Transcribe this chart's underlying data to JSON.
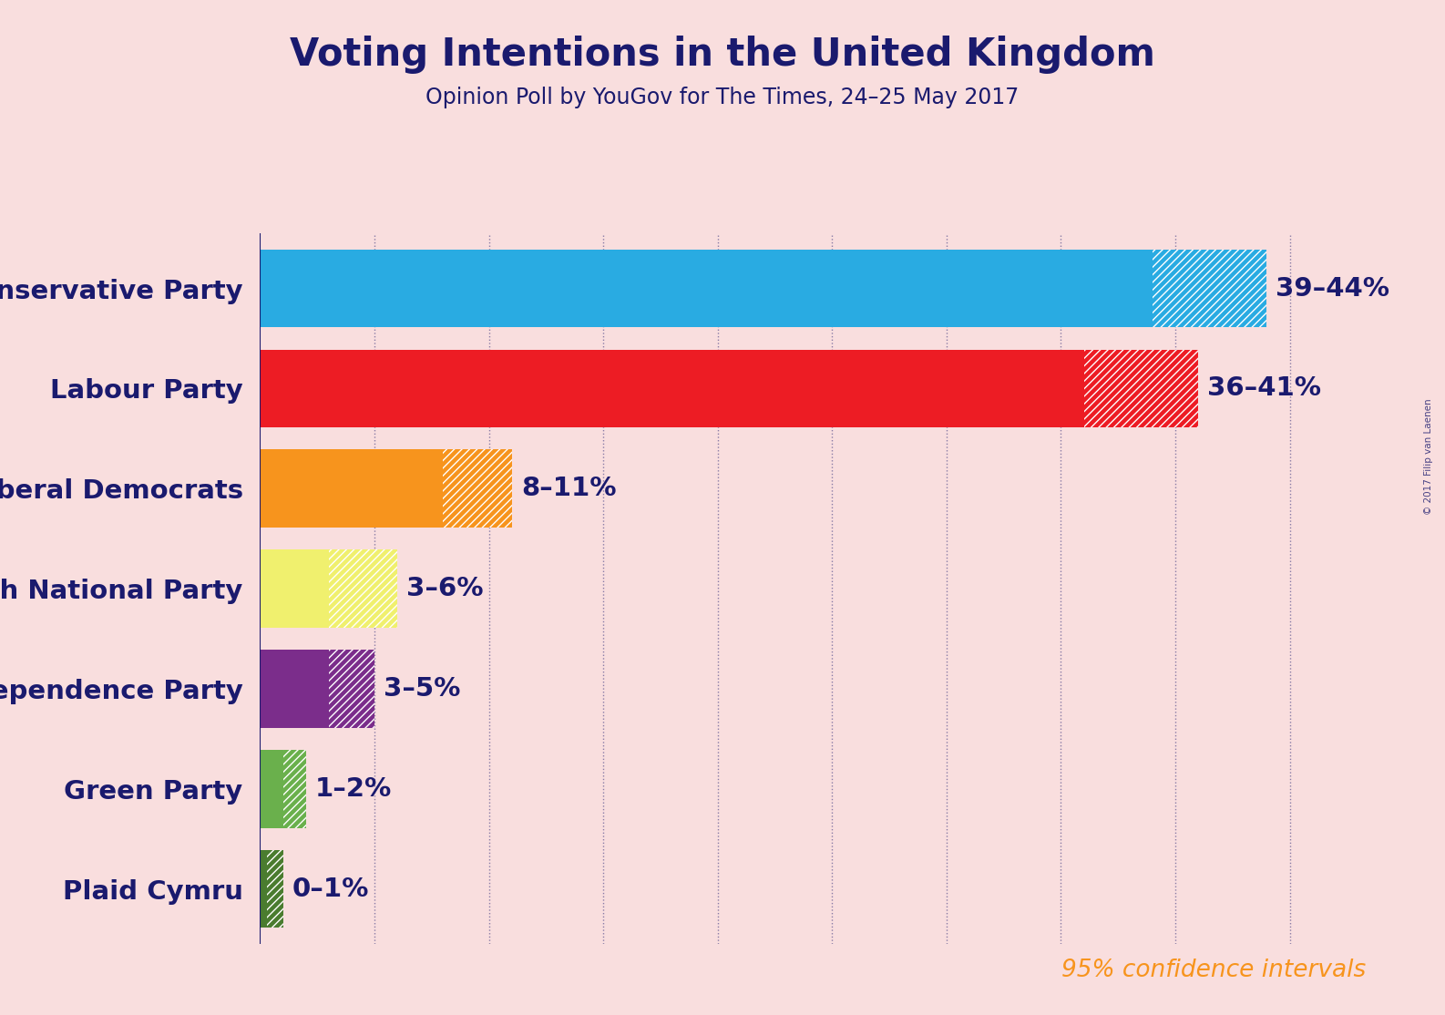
{
  "title": "Voting Intentions in the United Kingdom",
  "subtitle": "Opinion Poll by YouGov for The Times, 24–25 May 2017",
  "background_color": "#f9dede",
  "parties": [
    "Conservative Party",
    "Labour Party",
    "Liberal Democrats",
    "Scottish National Party",
    "UK Independence Party",
    "Green Party",
    "Plaid Cymru"
  ],
  "low": [
    39,
    36,
    8,
    3,
    3,
    1,
    0.3
  ],
  "high": [
    44,
    41,
    11,
    6,
    5,
    2,
    1
  ],
  "labels": [
    "39–44%",
    "36–41%",
    "8–11%",
    "3–6%",
    "3–5%",
    "1–2%",
    "0–1%"
  ],
  "solid_colors": [
    "#29abe2",
    "#ed1c24",
    "#f7941d",
    "#f0f06e",
    "#7b2d8b",
    "#6ab04c",
    "#4a7c2f"
  ],
  "title_color": "#1a1a6e",
  "subtitle_color": "#1a1a6e",
  "label_color": "#1a1a6e",
  "party_label_color": "#1a1a6e",
  "xlim": [
    0,
    48
  ],
  "gridline_positions": [
    5,
    10,
    15,
    20,
    25,
    30,
    35,
    40,
    45
  ],
  "note": "95% confidence intervals",
  "note_color": "#f7941d",
  "watermark": "© 2017 Filip van Laenen",
  "title_fontsize": 30,
  "subtitle_fontsize": 17,
  "party_fontsize": 21,
  "label_fontsize": 21,
  "note_fontsize": 19
}
